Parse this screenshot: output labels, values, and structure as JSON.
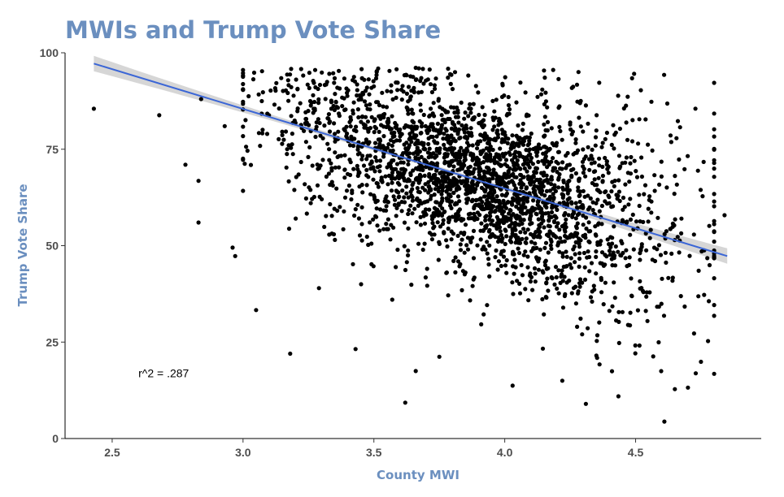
{
  "chart_data": {
    "type": "scatter",
    "title": "MWIs and Trump Vote Share",
    "xlabel": "County MWI",
    "ylabel": "Trump Vote Share",
    "xlim": [
      2.32,
      4.98
    ],
    "ylim": [
      0,
      100
    ],
    "x_ticks": [
      "2.5",
      "3.0",
      "3.5",
      "4.0",
      "4.5"
    ],
    "y_ticks": [
      "0",
      "25",
      "50",
      "75",
      "100"
    ],
    "grid": false,
    "legend": "none",
    "point_color": "#000000",
    "trend_color": "#3b66d6",
    "band_color": "#c8c8c8",
    "annotation": {
      "text": "r^2 = .287",
      "x": 2.6,
      "y": 17
    },
    "trend": {
      "x": [
        2.43,
        4.85
      ],
      "y": [
        97.2,
        47.3
      ],
      "band_halfwidth_ends": 2.0,
      "band_halfwidth_center": 0.5
    },
    "sampled_points": [
      [
        2.43,
        85.5
      ],
      [
        2.68,
        83.8
      ],
      [
        2.78,
        71.0
      ],
      [
        2.83,
        66.8
      ],
      [
        2.83,
        56.0
      ],
      [
        2.84,
        88.0
      ],
      [
        2.96,
        49.5
      ],
      [
        2.97,
        47.3
      ],
      [
        3.05,
        33.3
      ],
      [
        3.18,
        22.0
      ],
      [
        3.43,
        23.2
      ],
      [
        3.62,
        9.3
      ],
      [
        3.66,
        17.5
      ],
      [
        3.75,
        21.2
      ],
      [
        3.91,
        29.6
      ],
      [
        4.03,
        13.7
      ],
      [
        4.22,
        15.0
      ],
      [
        4.31,
        9.0
      ],
      [
        4.61,
        4.4
      ],
      [
        4.65,
        12.8
      ],
      [
        4.7,
        13.2
      ],
      [
        4.76,
        71.7
      ],
      [
        4.84,
        57.9
      ],
      [
        4.52,
        90.3
      ],
      [
        3.66,
        96.1
      ],
      [
        3.81,
        95.0
      ],
      [
        4.15,
        95.4
      ],
      [
        3.23,
        94.1
      ],
      [
        2.93,
        81.0
      ],
      [
        3.06,
        89.2
      ],
      [
        3.29,
        39.0
      ],
      [
        3.42,
        45.2
      ],
      [
        3.57,
        36.0
      ],
      [
        3.63,
        47.5
      ],
      [
        3.97,
        54.4
      ],
      [
        4.48,
        32.6
      ],
      [
        4.73,
        16.9
      ],
      [
        4.78,
        35.6
      ],
      [
        4.35,
        21.5
      ],
      [
        4.67,
        80.7
      ]
    ],
    "cluster_generation": {
      "count": 2700,
      "x_mean": 3.93,
      "x_sd": 0.37,
      "x_range": [
        3.0,
        4.8
      ],
      "slope": -20.6,
      "intercept": 147.2,
      "residual_sd": 11.5,
      "y_range": [
        10,
        96
      ]
    }
  }
}
